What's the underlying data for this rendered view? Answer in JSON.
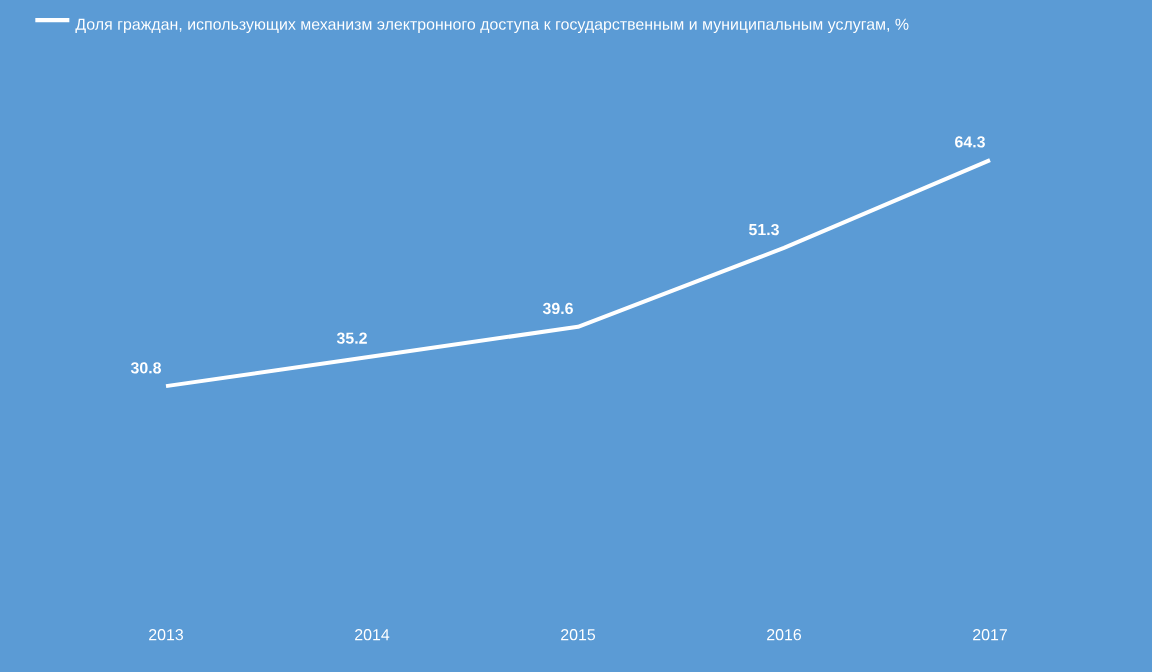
{
  "chart_data": {
    "type": "line",
    "categories": [
      "2013",
      "2014",
      "2015",
      "2016",
      "2017"
    ],
    "series": [
      {
        "name": "Доля граждан, использующих механизм электронного доступа к государственным и муниципальным услугам, %",
        "color": "#ffffff",
        "values": [
          30.8,
          35.2,
          39.6,
          51.3,
          64.3
        ]
      }
    ],
    "data_labels": true,
    "legend": "top left",
    "tick_labels": "x"
  }
}
